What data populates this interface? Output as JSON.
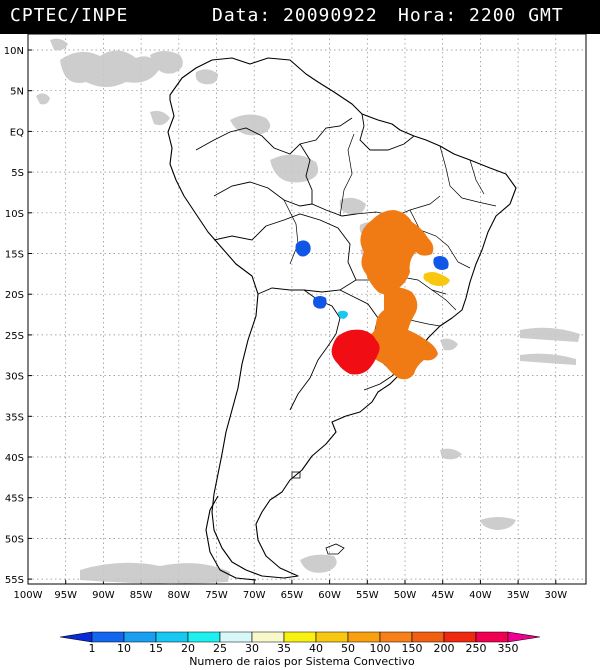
{
  "header": {
    "source": "CPTEC/INPE",
    "data_label": "Data: 20090922",
    "hora_label": "Hora: 2200 GMT"
  },
  "map": {
    "lat_labels": [
      "10N",
      "5N",
      "EQ",
      "5S",
      "10S",
      "15S",
      "20S",
      "25S",
      "30S",
      "35S",
      "40S",
      "45S",
      "50S",
      "55S"
    ],
    "lon_labels": [
      "100W",
      "95W",
      "90W",
      "85W",
      "80W",
      "75W",
      "70W",
      "65W",
      "60W",
      "55W",
      "50W",
      "45W",
      "40W",
      "35W",
      "30W"
    ],
    "grid": "dotted"
  },
  "colorbar": {
    "tick_labels": [
      "1",
      "10",
      "15",
      "20",
      "25",
      "30",
      "35",
      "40",
      "50",
      "100",
      "150",
      "200",
      "250",
      "350"
    ],
    "colors": [
      "#0a2bd8",
      "#1266f0",
      "#1a9ff0",
      "#19c8f0",
      "#1ef0f0",
      "#d8f8f8",
      "#f8f8c8",
      "#f8f010",
      "#f8c810",
      "#f8a010",
      "#f88018",
      "#f06010",
      "#f02810",
      "#f00050",
      "#f00090"
    ],
    "title": "Numero de raios por Sistema Convectivo"
  },
  "systems": [
    {
      "id": "cluster-central-brazil",
      "color": "#f07a14",
      "value_range": "150-200"
    },
    {
      "id": "cluster-south-brazil",
      "color": "#f07a14",
      "value_range": "150-200"
    },
    {
      "id": "cluster-paraguay-argentina",
      "color": "#f00e14",
      "value_range": "250-350"
    },
    {
      "id": "cluster-minas-yellow",
      "color": "#f8c810",
      "value_range": "40-50"
    },
    {
      "id": "cluster-minas-blue",
      "color": "#1256e8",
      "value_range": "10-15"
    },
    {
      "id": "cluster-bolivia-blue",
      "color": "#1256e8",
      "value_range": "10-15"
    },
    {
      "id": "cluster-paraguay-blue",
      "color": "#1256e8",
      "value_range": "10-15"
    },
    {
      "id": "cluster-paraguay-cyan",
      "color": "#19c8f0",
      "value_range": "20-25"
    }
  ]
}
